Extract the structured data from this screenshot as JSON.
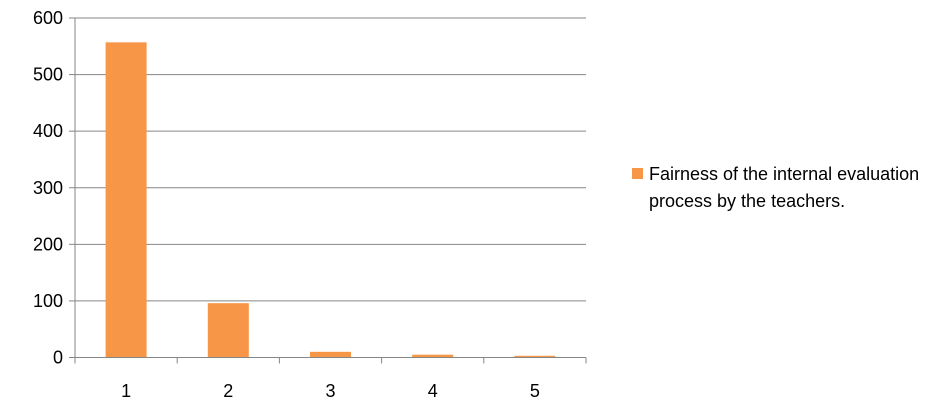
{
  "chart_data": {
    "type": "bar",
    "categories": [
      "1",
      "2",
      "3",
      "4",
      "5"
    ],
    "series": [
      {
        "name": "Fairness of the internal evaluation process by the teachers.",
        "values": [
          557,
          96,
          10,
          5,
          3
        ],
        "color": "#F79646"
      }
    ],
    "y_ticks": [
      0,
      100,
      200,
      300,
      400,
      500,
      600
    ],
    "ylim": [
      0,
      600
    ],
    "grid": true,
    "legend_position": "right",
    "axis_color": "#868686",
    "gridline_color": "#868686"
  }
}
